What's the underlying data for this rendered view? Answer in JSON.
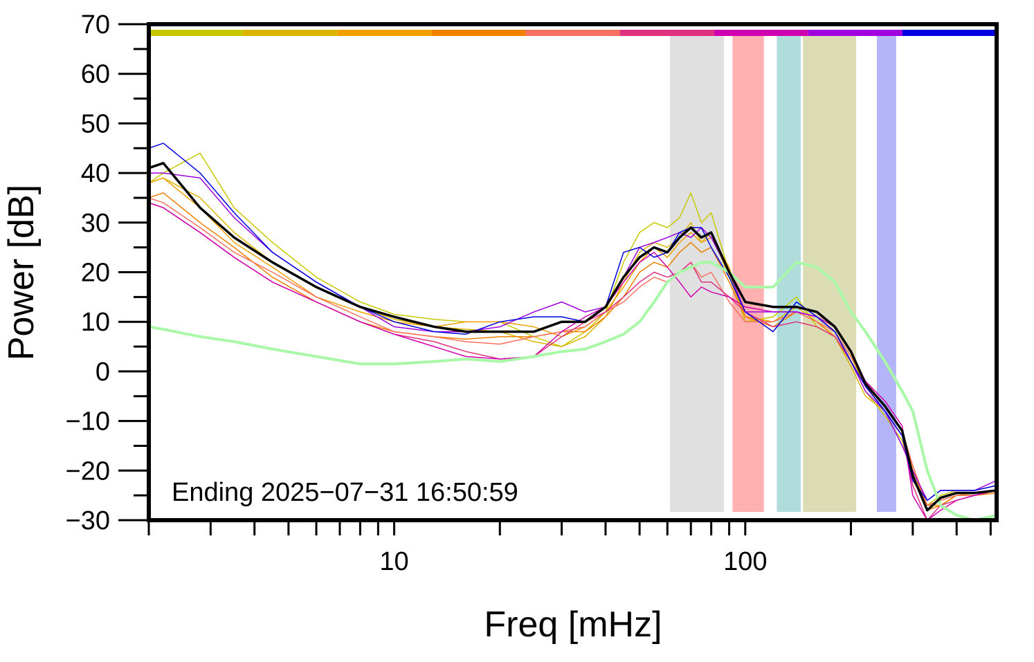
{
  "chart_data": {
    "type": "line",
    "xlabel": "Freq [mHz]",
    "ylabel": "Power [dB]",
    "annotation": "Ending 2025−07−31 16:50:59",
    "xscale": "log",
    "xlim": [
      2,
      520
    ],
    "xticks": [
      10,
      100
    ],
    "xminor_ticks": [
      2,
      3,
      4,
      5,
      6,
      7,
      8,
      9,
      20,
      30,
      40,
      50,
      60,
      70,
      80,
      90,
      200,
      300,
      400,
      500
    ],
    "ylim": [
      -30,
      70
    ],
    "yticks": [
      {
        "value": -30,
        "label": "−30"
      },
      {
        "value": -20,
        "label": "−20"
      },
      {
        "value": -10,
        "label": "−10"
      },
      0,
      10,
      20,
      30,
      40,
      50,
      60,
      70
    ],
    "yminor_ticks": [
      -25,
      -15,
      -5,
      5,
      15,
      25,
      35,
      45,
      55,
      65
    ],
    "bands": [
      {
        "xlim": [
          61,
          87
        ],
        "color": "#e0e0e0"
      },
      {
        "xlim": [
          92,
          113
        ],
        "color": "#ffb0b0"
      },
      {
        "xlim": [
          123,
          144
        ],
        "color": "#b0dcdc"
      },
      {
        "xlim": [
          146,
          207
        ],
        "color": "#dcdcb4"
      },
      {
        "xlim": [
          237,
          269
        ],
        "color": "#b4b4f8"
      }
    ],
    "x": [
      2,
      2.2,
      2.8,
      3.5,
      4.5,
      6,
      8,
      10,
      13,
      16,
      20,
      25,
      30,
      35,
      40,
      45,
      50,
      55,
      60,
      65,
      70,
      75,
      80,
      90,
      100,
      120,
      140,
      160,
      180,
      200,
      220,
      250,
      280,
      300,
      330,
      360,
      400,
      450,
      520
    ],
    "series": [
      {
        "color": "#c8c800",
        "width": 1.5,
        "values": [
          38,
          40,
          44,
          33,
          26,
          19,
          14,
          11.5,
          10.5,
          10,
          10,
          7,
          5,
          8,
          12,
          22,
          28,
          30,
          29,
          31,
          36,
          30,
          32,
          20,
          10,
          11,
          15,
          9,
          7,
          2,
          -4,
          -9,
          -14,
          -22,
          -27,
          -25,
          -24,
          -24,
          -23
        ]
      },
      {
        "color": "#dcb400",
        "width": 1.5,
        "values": [
          38,
          39,
          35,
          28,
          22,
          17,
          13,
          10.5,
          9,
          8.5,
          8,
          6,
          5,
          7,
          11,
          18,
          24,
          26,
          25,
          27,
          30,
          26,
          28,
          19,
          11,
          10,
          13,
          10,
          7,
          1,
          -5,
          -8,
          -13,
          -20,
          -27,
          -26,
          -25,
          -24.5,
          -24
        ]
      },
      {
        "color": "#f0a000",
        "width": 1.5,
        "values": [
          38,
          39,
          33,
          26,
          21,
          15,
          12,
          10,
          9,
          10,
          10,
          9,
          7,
          9,
          12,
          17,
          22,
          25,
          23,
          26,
          28,
          26,
          27,
          21,
          11,
          10,
          12,
          11,
          8,
          3,
          -3,
          -7,
          -12,
          -20,
          -27,
          -27,
          -25,
          -25,
          -24.5
        ]
      },
      {
        "color": "#f08000",
        "width": 1.5,
        "values": [
          35,
          36,
          30,
          25,
          19,
          14,
          10,
          8,
          7,
          6.5,
          7,
          7,
          8,
          8,
          11,
          15,
          20,
          22,
          21,
          24,
          26,
          24,
          25,
          18,
          11,
          9,
          12,
          10,
          7,
          2,
          -3,
          -8,
          -13,
          -19,
          -28,
          -27,
          -25,
          -25,
          -24.5
        ]
      },
      {
        "color": "#f87060",
        "width": 1.5,
        "values": [
          35,
          34,
          29,
          24,
          20,
          15,
          11,
          8,
          7,
          6,
          5.5,
          7,
          8,
          9,
          12,
          14,
          17,
          19,
          18,
          20,
          22,
          19,
          20,
          14,
          10,
          10,
          12,
          10,
          8,
          3,
          -2,
          -7,
          -12,
          -19,
          -27,
          -26,
          -25,
          -25,
          -24
        ]
      },
      {
        "color": "#e03080",
        "width": 1.5,
        "values": [
          34,
          33,
          28,
          23,
          18,
          14,
          10,
          7.5,
          6,
          4,
          2.5,
          3,
          7,
          10,
          12,
          15,
          18,
          20,
          19,
          20,
          22,
          18,
          18,
          15,
          12,
          9,
          10,
          9,
          7,
          2,
          -3,
          -8,
          -13,
          -23,
          -30,
          -27,
          -26,
          -25,
          -24
        ]
      },
      {
        "color": "#d000b0",
        "width": 1.5,
        "values": [
          34,
          33,
          28,
          23,
          18,
          14,
          10,
          7.5,
          5,
          3,
          2.5,
          3,
          8,
          11,
          13,
          18,
          22,
          24,
          21,
          18,
          15,
          17,
          16,
          15,
          13,
          12,
          12,
          11,
          9,
          4,
          -2,
          -6,
          -11,
          -25,
          -30,
          -28,
          -26,
          -25,
          -24
        ]
      },
      {
        "color": "#a000e0",
        "width": 1.5,
        "values": [
          40,
          40,
          39,
          31,
          24,
          18,
          13,
          9,
          8,
          8,
          9,
          12,
          14,
          12,
          13,
          19,
          25,
          26,
          27,
          28,
          27,
          29,
          27,
          20,
          12,
          12,
          12,
          11,
          8,
          2,
          -4,
          -8,
          -15,
          -20,
          -26,
          -24,
          -24,
          -24,
          -22
        ]
      },
      {
        "color": "#0000e0",
        "width": 1.5,
        "values": [
          45,
          46,
          40,
          32,
          24,
          18,
          13,
          10,
          8,
          7.5,
          10,
          11,
          11,
          10,
          13,
          24,
          25,
          23,
          24,
          28,
          29,
          29,
          25,
          19,
          12,
          8,
          14,
          11,
          8,
          2,
          -3,
          -8,
          -13,
          -22,
          -26,
          -24,
          -24,
          -24,
          -23
        ]
      },
      {
        "color": "#a8f8a8",
        "width": 4,
        "values": [
          9,
          8.5,
          7,
          6,
          4.5,
          3,
          1.5,
          1.5,
          2,
          2.5,
          2,
          3,
          4,
          4.5,
          6,
          7.5,
          10,
          14,
          18,
          20,
          21,
          22,
          22,
          20,
          17,
          17,
          22,
          21,
          18,
          12,
          8,
          2,
          -4,
          -8,
          -20,
          -27,
          -29,
          -30,
          -29
        ]
      },
      {
        "color": "#000000",
        "width": 3.5,
        "values": [
          41,
          42,
          33,
          27,
          22,
          17,
          13,
          11,
          9,
          8,
          8,
          8,
          10,
          10,
          13,
          19,
          23,
          25,
          24,
          27,
          29,
          27,
          28,
          20,
          14,
          13,
          13,
          12,
          9,
          4,
          -2.5,
          -7,
          -12,
          -21,
          -28,
          -25.5,
          -24.5,
          -24.5,
          -24
        ]
      }
    ]
  }
}
